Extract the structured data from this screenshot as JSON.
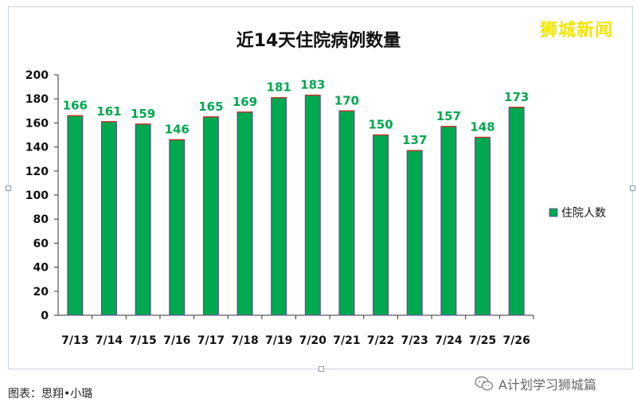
{
  "watermark": "狮城新闻",
  "caption": "图表：思翔•小璐",
  "account": "A计划学习狮城篇",
  "icon": "wechat-icon",
  "chart_data": {
    "type": "bar",
    "title": "近14天住院病例数量",
    "categories": [
      "7/13",
      "7/14",
      "7/15",
      "7/16",
      "7/17",
      "7/18",
      "7/19",
      "7/20",
      "7/21",
      "7/22",
      "7/23",
      "7/24",
      "7/25",
      "7/26"
    ],
    "series": [
      {
        "name": "住院人数",
        "values": [
          166,
          161,
          159,
          146,
          165,
          169,
          181,
          183,
          170,
          150,
          137,
          157,
          148,
          173
        ]
      }
    ],
    "ylim": [
      0,
      200
    ],
    "yticks": [
      0,
      20,
      40,
      60,
      80,
      100,
      120,
      140,
      160,
      180,
      200
    ],
    "grid": false,
    "legend": "right",
    "colors": {
      "bar": "#00a84f",
      "bar_edge": "#6a3fa0",
      "top_edge": "#c0392b",
      "label": "#00a84f"
    }
  }
}
